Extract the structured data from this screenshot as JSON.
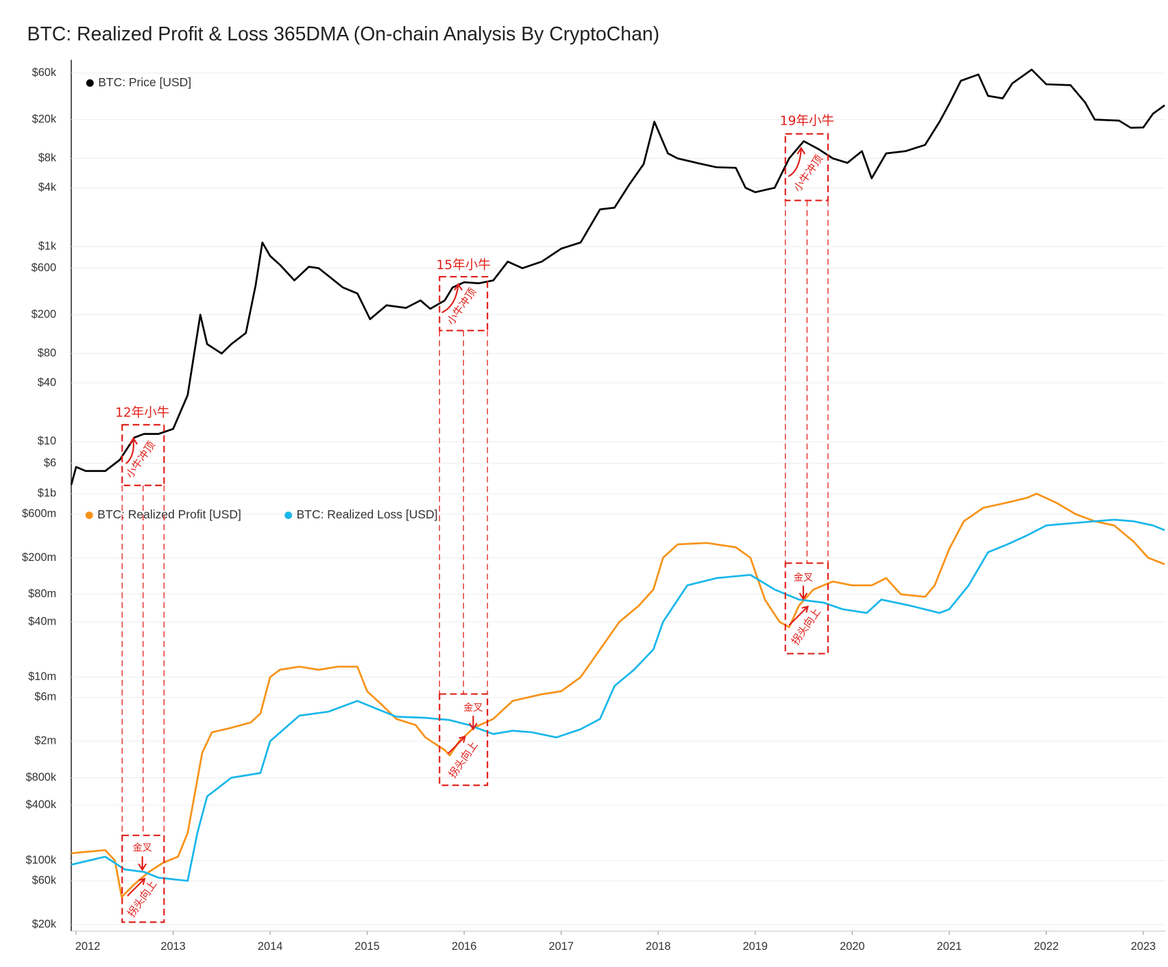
{
  "chart_data": [
    {
      "type": "line",
      "title": "BTC: Realized Profit & Loss 365DMA (On-chain Analysis By CryptoChan)",
      "log_scale": true,
      "grid": true,
      "xlim": [
        2011.95,
        2023.23
      ],
      "ylim": [
        3.5,
        75000
      ],
      "yticks": [
        {
          "value": 60000,
          "label": "$60k"
        },
        {
          "value": 20000,
          "label": "$20k"
        },
        {
          "value": 8000,
          "label": "$8k"
        },
        {
          "value": 4000,
          "label": "$4k"
        },
        {
          "value": 1000,
          "label": "$1k"
        },
        {
          "value": 600,
          "label": "$600"
        },
        {
          "value": 200,
          "label": "$200"
        },
        {
          "value": 80,
          "label": "$80"
        },
        {
          "value": 40,
          "label": "$40"
        },
        {
          "value": 10,
          "label": "$10"
        },
        {
          "value": 6,
          "label": "$6"
        }
      ],
      "series": [
        {
          "name": "BTC: Price [USD]",
          "color": "#000000",
          "x": [
            2011.95,
            2012.0,
            2012.1,
            2012.3,
            2012.45,
            2012.6,
            2012.7,
            2012.85,
            2013.0,
            2013.15,
            2013.28,
            2013.35,
            2013.5,
            2013.6,
            2013.75,
            2013.85,
            2013.92,
            2014.0,
            2014.1,
            2014.25,
            2014.4,
            2014.5,
            2014.6,
            2014.75,
            2014.9,
            2015.03,
            2015.2,
            2015.4,
            2015.55,
            2015.65,
            2015.8,
            2015.88,
            2016.0,
            2016.15,
            2016.3,
            2016.45,
            2016.6,
            2016.8,
            2017.0,
            2017.2,
            2017.4,
            2017.55,
            2017.7,
            2017.85,
            2017.96,
            2018.1,
            2018.2,
            2018.45,
            2018.6,
            2018.8,
            2018.9,
            2019.0,
            2019.2,
            2019.35,
            2019.5,
            2019.65,
            2019.8,
            2019.95,
            2020.1,
            2020.2,
            2020.35,
            2020.55,
            2020.75,
            2020.9,
            2021.0,
            2021.12,
            2021.3,
            2021.4,
            2021.55,
            2021.65,
            2021.85,
            2022.0,
            2022.25,
            2022.4,
            2022.5,
            2022.75,
            2022.87,
            2023.0,
            2023.1,
            2023.22
          ],
          "values": [
            3.6,
            5.5,
            5,
            5,
            6.5,
            11,
            12,
            12,
            13.5,
            30,
            200,
            100,
            80,
            100,
            130,
            400,
            1100,
            800,
            650,
            450,
            620,
            600,
            500,
            380,
            330,
            180,
            250,
            235,
            280,
            230,
            280,
            380,
            430,
            420,
            450,
            700,
            600,
            700,
            950,
            1100,
            2400,
            2500,
            4300,
            7000,
            19000,
            9000,
            8000,
            7000,
            6500,
            6400,
            4000,
            3600,
            4000,
            8000,
            12000,
            10000,
            8000,
            7200,
            9500,
            5000,
            9000,
            9500,
            11000,
            19000,
            29000,
            50000,
            58000,
            35000,
            33000,
            47000,
            65000,
            46000,
            45000,
            30000,
            20000,
            19500,
            16500,
            16600,
            23000,
            28000
          ]
        }
      ]
    },
    {
      "type": "line",
      "log_scale": true,
      "grid": true,
      "xlim": [
        2011.95,
        2023.23
      ],
      "xticks": [
        2012,
        2013,
        2014,
        2015,
        2016,
        2017,
        2018,
        2019,
        2020,
        2021,
        2022,
        2023
      ],
      "ylim": [
        17000,
        1100000000
      ],
      "yticks": [
        {
          "value": 1000000000,
          "label": "$1b"
        },
        {
          "value": 600000000,
          "label": "$600m"
        },
        {
          "value": 200000000,
          "label": "$200m"
        },
        {
          "value": 80000000,
          "label": "$80m"
        },
        {
          "value": 40000000,
          "label": "$40m"
        },
        {
          "value": 10000000,
          "label": "$10m"
        },
        {
          "value": 6000000,
          "label": "$6m"
        },
        {
          "value": 2000000,
          "label": "$2m"
        },
        {
          "value": 800000,
          "label": "$800k"
        },
        {
          "value": 400000,
          "label": "$400k"
        },
        {
          "value": 100000,
          "label": "$100k"
        },
        {
          "value": 60000,
          "label": "$60k"
        },
        {
          "value": 20000,
          "label": "$20k"
        }
      ],
      "series": [
        {
          "name": "BTC: Realized Profit [USD]",
          "color": "#f7931a",
          "x": [
            2011.95,
            2012.3,
            2012.4,
            2012.47,
            2012.6,
            2012.75,
            2012.9,
            2013.05,
            2013.15,
            2013.3,
            2013.4,
            2013.6,
            2013.8,
            2013.9,
            2014.0,
            2014.1,
            2014.3,
            2014.5,
            2014.7,
            2014.9,
            2015.0,
            2015.15,
            2015.3,
            2015.5,
            2015.6,
            2015.8,
            2015.85,
            2015.95,
            2016.1,
            2016.3,
            2016.5,
            2016.8,
            2017.0,
            2017.2,
            2017.4,
            2017.6,
            2017.8,
            2017.95,
            2018.05,
            2018.2,
            2018.5,
            2018.8,
            2018.95,
            2019.1,
            2019.25,
            2019.35,
            2019.45,
            2019.6,
            2019.8,
            2020.0,
            2020.2,
            2020.35,
            2020.5,
            2020.75,
            2020.85,
            2021.0,
            2021.15,
            2021.35,
            2021.6,
            2021.8,
            2021.9,
            2022.1,
            2022.3,
            2022.5,
            2022.7,
            2022.9,
            2023.05,
            2023.22
          ],
          "values": [
            120000,
            130000,
            100000,
            40000,
            55000,
            75000,
            95000,
            110000,
            200000,
            1500000,
            2500000,
            2800000,
            3200000,
            4000000,
            10000000,
            12000000,
            13000000,
            12000000,
            13000000,
            13000000,
            7000000,
            5000000,
            3500000,
            3000000,
            2200000,
            1600000,
            1400000,
            2000000,
            2800000,
            3500000,
            5500000,
            6500000,
            7000000,
            10000000,
            20000000,
            40000000,
            60000000,
            90000000,
            200000000,
            280000000,
            290000000,
            260000000,
            200000000,
            70000000,
            40000000,
            35000000,
            60000000,
            90000000,
            110000000,
            100000000,
            100000000,
            120000000,
            80000000,
            75000000,
            100000000,
            250000000,
            500000000,
            700000000,
            800000000,
            900000000,
            1000000000,
            800000000,
            600000000,
            500000000,
            450000000,
            300000000,
            200000000,
            170000000
          ]
        },
        {
          "name": "BTC: Realized Loss [USD]",
          "color": "#1ab7ea",
          "x": [
            2011.95,
            2012.3,
            2012.5,
            2012.7,
            2012.85,
            2013.15,
            2013.25,
            2013.35,
            2013.6,
            2013.9,
            2014.0,
            2014.3,
            2014.6,
            2014.9,
            2015.1,
            2015.3,
            2015.6,
            2015.85,
            2016.05,
            2016.3,
            2016.5,
            2016.7,
            2016.95,
            2017.2,
            2017.4,
            2017.55,
            2017.75,
            2017.95,
            2018.05,
            2018.3,
            2018.6,
            2018.95,
            2019.2,
            2019.45,
            2019.7,
            2019.9,
            2020.15,
            2020.3,
            2020.6,
            2020.9,
            2021.0,
            2021.2,
            2021.4,
            2021.6,
            2021.8,
            2022.0,
            2022.3,
            2022.5,
            2022.7,
            2022.9,
            2023.1,
            2023.22
          ],
          "values": [
            90000,
            110000,
            80000,
            75000,
            65000,
            60000,
            200000,
            500000,
            800000,
            900000,
            2000000,
            3800000,
            4200000,
            5500000,
            4500000,
            3700000,
            3600000,
            3400000,
            3000000,
            2400000,
            2600000,
            2500000,
            2200000,
            2700000,
            3500000,
            8000000,
            12000000,
            20000000,
            40000000,
            100000000,
            120000000,
            130000000,
            90000000,
            70000000,
            65000000,
            55000000,
            50000000,
            70000000,
            60000000,
            50000000,
            55000000,
            100000000,
            230000000,
            280000000,
            350000000,
            450000000,
            480000000,
            500000000,
            520000000,
            500000000,
            450000000,
            400000000
          ]
        }
      ]
    }
  ],
  "annotations": [
    "12年小牛",
    "15年小牛",
    "19年小牛",
    "小牛冲顶",
    "金叉",
    "拐头向上"
  ]
}
